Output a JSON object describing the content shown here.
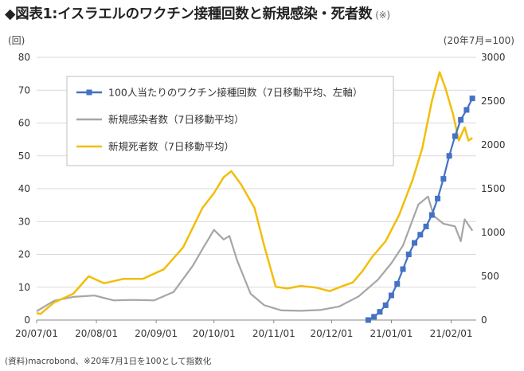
{
  "header": {
    "title": "◆図表1:イスラエルのワクチン接種回数と新規感染・死者数",
    "note": "(※)"
  },
  "units": {
    "left": "(回)",
    "right": "(20年7月=100)"
  },
  "footer": {
    "source": "(資料)macrobond、※20年7月1日を100として指数化"
  },
  "chart_data": {
    "type": "line",
    "x_ticks": [
      "20/07/01",
      "20/08/01",
      "20/09/01",
      "20/10/01",
      "20/11/01",
      "20/12/01",
      "21/01/01",
      "21/02/01"
    ],
    "y_left": {
      "ylim": [
        0,
        80
      ],
      "ticks": [
        0,
        10,
        20,
        30,
        40,
        50,
        60,
        70,
        80
      ]
    },
    "y_right": {
      "ylim": [
        0,
        3000
      ],
      "ticks": [
        0,
        500,
        1000,
        1500,
        2000,
        2500,
        3000
      ]
    },
    "grid": true,
    "legend_position": "top-left",
    "series": [
      {
        "name": "100人当たりのワクチン接種回数（7日移動平均、左軸）",
        "axis": "left",
        "color": "#4472C4",
        "marker": "square",
        "points": [
          [
            "2020-12-20",
            0.0
          ],
          [
            "2020-12-23",
            1.0
          ],
          [
            "2020-12-26",
            2.5
          ],
          [
            "2020-12-29",
            4.5
          ],
          [
            "2021-01-01",
            7.5
          ],
          [
            "2021-01-04",
            11.0
          ],
          [
            "2021-01-07",
            15.5
          ],
          [
            "2021-01-10",
            20.0
          ],
          [
            "2021-01-13",
            23.5
          ],
          [
            "2021-01-16",
            26.0
          ],
          [
            "2021-01-19",
            28.5
          ],
          [
            "2021-01-22",
            32.0
          ],
          [
            "2021-01-25",
            37.0
          ],
          [
            "2021-01-28",
            43.0
          ],
          [
            "2021-01-31",
            50.0
          ],
          [
            "2021-02-03",
            56.0
          ],
          [
            "2021-02-06",
            61.0
          ],
          [
            "2021-02-09",
            64.0
          ],
          [
            "2021-02-12",
            67.5
          ]
        ]
      },
      {
        "name": "新規感染者数（7日移動平均）",
        "axis": "right",
        "color": "#A6A6A6",
        "points": [
          [
            "2020-07-01",
            100
          ],
          [
            "2020-07-10",
            220
          ],
          [
            "2020-07-20",
            265
          ],
          [
            "2020-07-31",
            280
          ],
          [
            "2020-08-10",
            225
          ],
          [
            "2020-08-20",
            230
          ],
          [
            "2020-08-31",
            225
          ],
          [
            "2020-09-10",
            320
          ],
          [
            "2020-09-20",
            620
          ],
          [
            "2020-09-25",
            810
          ],
          [
            "2020-10-01",
            1030
          ],
          [
            "2020-10-06",
            920
          ],
          [
            "2020-10-09",
            960
          ],
          [
            "2020-10-13",
            680
          ],
          [
            "2020-10-20",
            300
          ],
          [
            "2020-10-27",
            170
          ],
          [
            "2020-11-05",
            110
          ],
          [
            "2020-11-15",
            105
          ],
          [
            "2020-11-25",
            115
          ],
          [
            "2020-12-05",
            155
          ],
          [
            "2020-12-15",
            270
          ],
          [
            "2020-12-25",
            460
          ],
          [
            "2021-01-01",
            650
          ],
          [
            "2021-01-07",
            850
          ],
          [
            "2021-01-15",
            1320
          ],
          [
            "2021-01-20",
            1410
          ],
          [
            "2021-01-23",
            1190
          ],
          [
            "2021-01-28",
            1100
          ],
          [
            "2021-02-03",
            1070
          ],
          [
            "2021-02-06",
            900
          ],
          [
            "2021-02-08",
            1150
          ],
          [
            "2021-02-12",
            1020
          ]
        ]
      },
      {
        "name": "新規死者数（7日移動平均）",
        "axis": "right",
        "color": "#F2BE0A",
        "points": [
          [
            "2020-07-01",
            80
          ],
          [
            "2020-07-03",
            70
          ],
          [
            "2020-07-10",
            200
          ],
          [
            "2020-07-20",
            300
          ],
          [
            "2020-07-28",
            500
          ],
          [
            "2020-08-05",
            420
          ],
          [
            "2020-08-15",
            470
          ],
          [
            "2020-08-25",
            470
          ],
          [
            "2020-09-05",
            580
          ],
          [
            "2020-09-15",
            830
          ],
          [
            "2020-09-25",
            1280
          ],
          [
            "2020-10-01",
            1450
          ],
          [
            "2020-10-06",
            1630
          ],
          [
            "2020-10-10",
            1700
          ],
          [
            "2020-10-15",
            1550
          ],
          [
            "2020-10-22",
            1280
          ],
          [
            "2020-10-27",
            850
          ],
          [
            "2020-11-02",
            380
          ],
          [
            "2020-11-08",
            360
          ],
          [
            "2020-11-15",
            390
          ],
          [
            "2020-11-23",
            370
          ],
          [
            "2020-11-30",
            330
          ],
          [
            "2020-12-07",
            390
          ],
          [
            "2020-12-12",
            430
          ],
          [
            "2020-12-17",
            560
          ],
          [
            "2020-12-22",
            720
          ],
          [
            "2020-12-29",
            900
          ],
          [
            "2021-01-05",
            1200
          ],
          [
            "2021-01-12",
            1600
          ],
          [
            "2021-01-17",
            1960
          ],
          [
            "2021-01-22",
            2500
          ],
          [
            "2021-01-26",
            2830
          ],
          [
            "2021-01-29",
            2650
          ],
          [
            "2021-02-02",
            2350
          ],
          [
            "2021-02-05",
            2050
          ],
          [
            "2021-02-08",
            2200
          ],
          [
            "2021-02-10",
            2050
          ],
          [
            "2021-02-12",
            2080
          ]
        ]
      }
    ]
  }
}
